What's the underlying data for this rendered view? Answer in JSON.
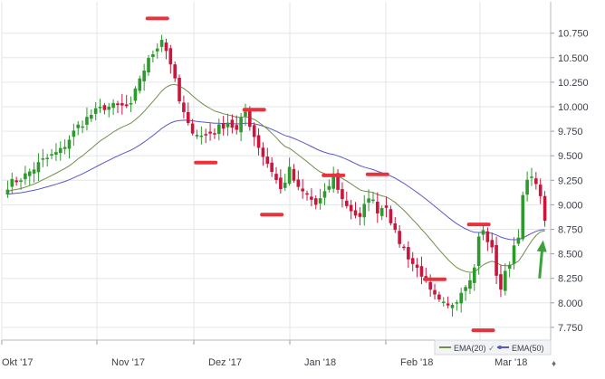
{
  "chart_data": {
    "type": "candlestick",
    "x_tick_labels": [
      "Okt '17",
      "Nov '17",
      "Dez '17",
      "Jan '18",
      "Feb '18",
      "Mar '18"
    ],
    "y_tick_labels": [
      "7.750",
      "8.000",
      "8.250",
      "8.500",
      "8.750",
      "9.000",
      "9.250",
      "9.500",
      "9.750",
      "10.000",
      "10.250",
      "10.500",
      "10.750"
    ],
    "ylim": [
      7.62,
      11.07
    ],
    "grid": true,
    "legend": [
      {
        "name": "EMA(20)",
        "color": "#6e8f4a"
      },
      {
        "name": "EMA(50)",
        "color": "#5858c8"
      }
    ],
    "colors": {
      "up": "#2e9a2e",
      "down": "#c8163d",
      "marker": "#e8323c",
      "arrow": "#3aa23a",
      "grid": "#e3e6ea"
    },
    "price_path": [
      {
        "i": 0,
        "v": 9.2
      },
      {
        "i": 4,
        "v": 9.3
      },
      {
        "i": 8,
        "v": 9.45
      },
      {
        "i": 12,
        "v": 9.55
      },
      {
        "i": 16,
        "v": 9.8
      },
      {
        "i": 19,
        "v": 9.92
      },
      {
        "i": 22,
        "v": 10.0
      },
      {
        "i": 25,
        "v": 10.0
      },
      {
        "i": 28,
        "v": 10.0
      },
      {
        "i": 30,
        "v": 10.3
      },
      {
        "i": 33,
        "v": 10.55
      },
      {
        "i": 35,
        "v": 10.7
      },
      {
        "i": 37,
        "v": 10.45
      },
      {
        "i": 39,
        "v": 10.05
      },
      {
        "i": 41,
        "v": 9.8
      },
      {
        "i": 44,
        "v": 9.7
      },
      {
        "i": 47,
        "v": 9.75
      },
      {
        "i": 50,
        "v": 9.85
      },
      {
        "i": 52,
        "v": 9.75
      },
      {
        "i": 54,
        "v": 9.95
      },
      {
        "i": 56,
        "v": 9.7
      },
      {
        "i": 58,
        "v": 9.5
      },
      {
        "i": 60,
        "v": 9.35
      },
      {
        "i": 62,
        "v": 9.15
      },
      {
        "i": 64,
        "v": 9.35
      },
      {
        "i": 66,
        "v": 9.15
      },
      {
        "i": 68,
        "v": 9.1
      },
      {
        "i": 70,
        "v": 9.0
      },
      {
        "i": 72,
        "v": 9.1
      },
      {
        "i": 74,
        "v": 9.3
      },
      {
        "i": 76,
        "v": 9.05
      },
      {
        "i": 78,
        "v": 8.95
      },
      {
        "i": 80,
        "v": 8.85
      },
      {
        "i": 82,
        "v": 9.1
      },
      {
        "i": 84,
        "v": 8.95
      },
      {
        "i": 86,
        "v": 9.0
      },
      {
        "i": 88,
        "v": 8.7
      },
      {
        "i": 90,
        "v": 8.55
      },
      {
        "i": 92,
        "v": 8.4
      },
      {
        "i": 94,
        "v": 8.3
      },
      {
        "i": 96,
        "v": 8.1
      },
      {
        "i": 98,
        "v": 8.0
      },
      {
        "i": 100,
        "v": 7.95
      },
      {
        "i": 102,
        "v": 8.05
      },
      {
        "i": 104,
        "v": 8.2
      },
      {
        "i": 106,
        "v": 8.35
      },
      {
        "i": 107,
        "v": 8.7
      },
      {
        "i": 108,
        "v": 8.72
      },
      {
        "i": 109,
        "v": 8.62
      },
      {
        "i": 110,
        "v": 8.55
      },
      {
        "i": 111,
        "v": 8.3
      },
      {
        "i": 112,
        "v": 8.1
      },
      {
        "i": 113,
        "v": 8.35
      },
      {
        "i": 114,
        "v": 8.4
      },
      {
        "i": 115,
        "v": 8.55
      },
      {
        "i": 116,
        "v": 8.7
      },
      {
        "i": 117,
        "v": 9.1
      },
      {
        "i": 118,
        "v": 9.3
      },
      {
        "i": 119,
        "v": 9.25
      },
      {
        "i": 120,
        "v": 9.2
      },
      {
        "i": 121,
        "v": 9.05
      },
      {
        "i": 122,
        "v": 8.88
      }
    ]
  }
}
